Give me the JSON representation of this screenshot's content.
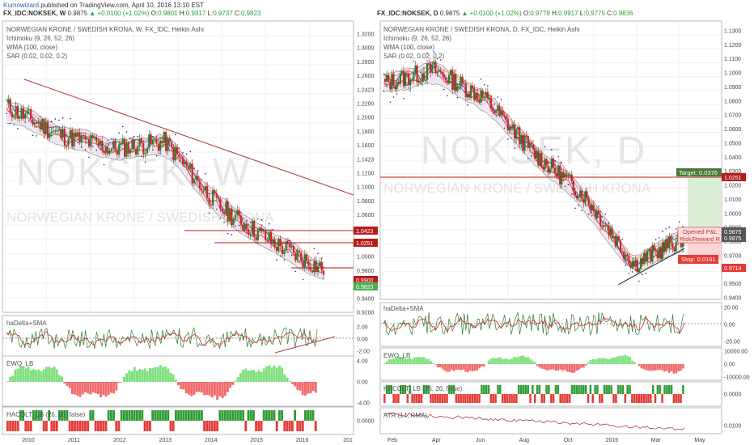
{
  "header": {
    "author": "Kumowizard",
    "published_text": "published on TradingView.com, April 10, 2016 13:10 EST"
  },
  "left": {
    "symbol": "FX_IDC:NOKSEK, W",
    "price": "0.9875",
    "change": "▲ +0.0100 (+1.02%)",
    "o_label": "O:",
    "o": "0.9801",
    "h_label": "H:",
    "h": "0.9917",
    "l_label": "L:",
    "l": "0.9737",
    "c_label": "C:",
    "c": "0.9823",
    "legend": [
      "NORWEGIAN KRONE / SWEDISH KRONA, W, FX_IDC, Heikin Ashi",
      "Ichimoku (9, 26, 52, 26)",
      "WMA (100, close)",
      "SAR (0.02, 0.02, 0.2)"
    ],
    "watermark_symbol": "NOKSEK, W",
    "watermark_name": "NORWEGIAN KRONE / SWEDISH KRONA",
    "price_ticks": [
      "1.3200",
      "1.3000",
      "1.2800",
      "1.2600",
      "1.2423",
      "1.2200",
      "1.2000",
      "1.1800",
      "1.1600",
      "1.1423",
      "1.1200",
      "1.1000",
      "1.0800",
      "1.0600",
      "1.0423",
      "1.0251",
      "1.0000",
      "0.9800",
      "0.9600",
      "0.9400",
      "0.9200"
    ],
    "price_badges": [
      {
        "text": "1.0423",
        "color": "#b71c1c"
      },
      {
        "text": "1.0251",
        "color": "#b71c1c"
      },
      {
        "text": "0.9900",
        "color": "#b71c1c"
      },
      {
        "text": "0.9823",
        "color": "#4caf50"
      }
    ],
    "ind1_label": "haDelta+SMA",
    "ind1_ticks": [
      "2.00",
      "0.00",
      "-2.00"
    ],
    "ind2_label": "EWO_LB",
    "ind2_ticks": [
      "4.00",
      "0.00",
      "-4.00"
    ],
    "ind3_label": "HACOLT_LB (26, 26, false)",
    "ind3_ticks": [
      "0.0000"
    ],
    "time_ticks": [
      "2010",
      "2011",
      "2012",
      "2013",
      "2014",
      "2015",
      "2016",
      "201"
    ]
  },
  "right": {
    "symbol": "FX_IDC:NOKSEK, D",
    "price": "0.9875",
    "change": "▲ +0.0100 (+1.02%)",
    "o_label": "O:",
    "o": "0.9778",
    "h_label": "H:",
    "h": "0.9917",
    "l_label": "L:",
    "l": "0.9775",
    "c_label": "C:",
    "c": "0.9836",
    "legend": [
      "NORWEGIAN KRONE / SWEDISH KRONA, D, FX_IDC, Heikin Ashi",
      "Ichimoku (9, 26, 52, 26)",
      "WMA (100, close)",
      "SAR (0.02, 0.02, 0.2)"
    ],
    "watermark_symbol": "NOKSEK, D",
    "watermark_name": "NORWEGIAN KRONE / SWEDISH KRONA",
    "price_ticks": [
      "1.1300",
      "1.1200",
      "1.1100",
      "1.1000",
      "1.0900",
      "1.0800",
      "1.0700",
      "1.0600",
      "1.0500",
      "1.0400",
      "1.0300",
      "1.0200",
      "1.0100",
      "1.0000",
      "0.9900",
      "0.9800",
      "0.9700",
      "0.9600",
      "0.9500",
      "0.9400"
    ],
    "price_badges": [
      {
        "text": "1.0251",
        "color": "#b71c1c"
      },
      {
        "text": "0.9875",
        "color": "#555555"
      },
      {
        "text": "0.9875",
        "color": "#555555"
      },
      {
        "text": "0.9714",
        "color": "#e53935"
      }
    ],
    "target_label": "Target: 0.0376",
    "target_value": "1.0251",
    "opened_label": "Opened P&L:",
    "risk_label": "Risk/Reward R",
    "stop_label": "Stop: 0.0161",
    "ind1_label": "haDelta+SMA",
    "ind1_ticks": [
      "20.00",
      "0.00",
      "-20.00"
    ],
    "ind2_label": "EWO_LB",
    "ind2_ticks": [
      "10000.00",
      "0.00",
      "-10000.00"
    ],
    "ind3_label": "HACOLT_LB (26, 26, false)",
    "ind3_ticks": [
      "0.0000"
    ],
    "ind4_label": "ATR (14, RMA)",
    "ind4_ticks": [
      "0.0100"
    ],
    "time_ticks": [
      "Feb",
      "Apr",
      "Jun",
      "Aug",
      "Oct",
      "2016",
      "Mar",
      "May"
    ]
  },
  "chart_data": [
    {
      "type": "line",
      "title": "NORWEGIAN KRONE / SWEDISH KRONA, W, FX_IDC, Heikin Ashi",
      "x": [
        "2010",
        "2011",
        "2012",
        "2013",
        "2014",
        "2015",
        "2016"
      ],
      "series": [
        {
          "values": [
            1.21,
            1.17,
            1.15,
            1.16,
            1.07,
            1.02,
            0.98
          ]
        }
      ],
      "ylim": [
        0.92,
        1.33
      ],
      "horizontal_levels": [
        1.0423,
        1.0251,
        0.99
      ],
      "grid": true
    },
    {
      "type": "line",
      "title": "NORWEGIAN KRONE / SWEDISH KRONA, D, FX_IDC, Heikin Ashi",
      "x": [
        "Feb",
        "Apr",
        "Jun",
        "Aug",
        "Oct",
        "2016",
        "Mar"
      ],
      "series": [
        {
          "values": [
            1.09,
            1.1,
            1.08,
            1.04,
            1.01,
            0.96,
            0.98
          ]
        }
      ],
      "ylim": [
        0.935,
        1.135
      ],
      "horizontal_levels": [
        1.0251,
        0.9875,
        0.9714
      ],
      "grid": true
    }
  ],
  "colors": {
    "bull": "#2e7d32",
    "bear": "#c62828",
    "wma": "#3f51b5",
    "kumo": "#e8d0e8",
    "target_box": "#4a7a3a",
    "stop_box": "#e53935",
    "ewo_pos": "#7ee07e",
    "ewo_neg": "#f26a6a"
  }
}
